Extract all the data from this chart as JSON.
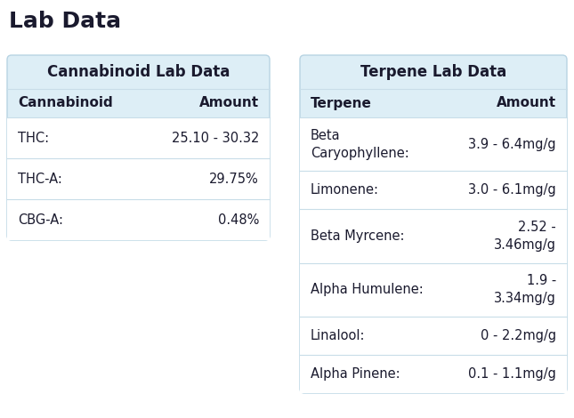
{
  "title": "Lab Data",
  "title_fontsize": 18,
  "title_fontweight": "bold",
  "background_color": "#ffffff",
  "panel_bg_color": "#ddeef6",
  "row_bg_color": "#ffffff",
  "border_color": "#b8d4e3",
  "separator_color": "#c8dde8",
  "text_color": "#1a1a2e",
  "header_fontsize": 11,
  "cell_fontsize": 10.5,
  "cannab_title": "Cannabinoid Lab Data",
  "cannab_col1_header": "Cannabinoid",
  "cannab_col2_header": "Amount",
  "cannabinoids": [
    {
      "name": "THC:",
      "amount": "25.10 - 30.32"
    },
    {
      "name": "THC-A:",
      "amount": "29.75%"
    },
    {
      "name": "CBG-A:",
      "amount": "0.48%"
    }
  ],
  "terpene_title": "Terpene Lab Data",
  "terpene_col1_header": "Terpene",
  "terpene_col2_header": "Amount",
  "terpenes": [
    {
      "name": "Beta\nCaryophyllene:",
      "amount": "3.9 - 6.4mg/g",
      "two_line_name": true,
      "two_line_amount": false
    },
    {
      "name": "Limonene:",
      "amount": "3.0 - 6.1mg/g",
      "two_line_name": false,
      "two_line_amount": false
    },
    {
      "name": "Beta Myrcene:",
      "amount": "2.52 -\n3.46mg/g",
      "two_line_name": false,
      "two_line_amount": true
    },
    {
      "name": "Alpha Humulene:",
      "amount": "1.9 -\n3.34mg/g",
      "two_line_name": false,
      "two_line_amount": true
    },
    {
      "name": "Linalool:",
      "amount": "0 - 2.2mg/g",
      "two_line_name": false,
      "two_line_amount": false
    },
    {
      "name": "Alpha Pinene:",
      "amount": "0.1 - 1.1mg/g",
      "two_line_name": false,
      "two_line_amount": false
    }
  ]
}
